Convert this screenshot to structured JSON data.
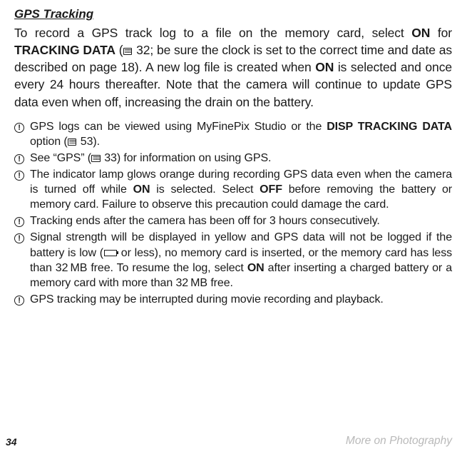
{
  "title": "GPS Tracking",
  "intro_parts": {
    "a": "To record a GPS track log to a file on the memory card, select ",
    "on1": "ON",
    "b": " for ",
    "tracking_data": "TRACKING DATA",
    "c": " (",
    "ref1": " 32; be sure the clock is set to the correct time and date as described on page 18). A new log file is created when ",
    "on2": "ON",
    "d": " is selected and once every 24 hours thereafter. Note that the camera will continue to update GPS data even when off, increasing the drain on the battery."
  },
  "bullets": [
    {
      "parts": [
        {
          "t": "GPS logs can be viewed using MyFinePix Studio or the "
        },
        {
          "t": "DISP TRACKING DATA",
          "bold": true
        },
        {
          "t": " option ("
        },
        {
          "icon": "page"
        },
        {
          "t": " 53)."
        }
      ]
    },
    {
      "parts": [
        {
          "t": "See “GPS” ("
        },
        {
          "icon": "page"
        },
        {
          "t": " 33) for information on using GPS."
        }
      ]
    },
    {
      "parts": [
        {
          "t": "The indicator lamp glows orange during recording GPS data even when the camera is turned off while "
        },
        {
          "t": "ON",
          "bold": true
        },
        {
          "t": " is selected. Select "
        },
        {
          "t": "OFF",
          "bold": true
        },
        {
          "t": " before removing the battery or memory card. Failure to observe this precaution could damage the card."
        }
      ]
    },
    {
      "parts": [
        {
          "t": "Tracking ends after the camera has been off for 3 hours consecutively."
        }
      ]
    },
    {
      "parts": [
        {
          "t": "Signal strength will be displayed in yellow and GPS data will not be logged if the battery is low ("
        },
        {
          "icon": "battery"
        },
        {
          "t": " or less), no memory card is inserted, or the memory card has less than 32 MB free. To resume the log, select "
        },
        {
          "t": "ON",
          "bold": true
        },
        {
          "t": " after inserting a charged battery or a memory card with more than 32 MB free."
        }
      ]
    },
    {
      "parts": [
        {
          "t": "GPS tracking may be interrupted during movie recording and playback."
        }
      ]
    }
  ],
  "bullet_marker": "!",
  "page_number": "34",
  "footer_right": "More on Photography"
}
